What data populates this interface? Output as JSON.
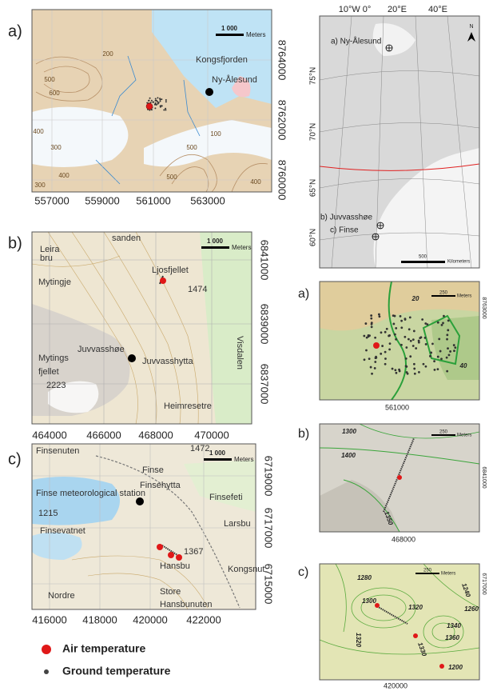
{
  "panels": [
    {
      "label": "a)",
      "scale": "1 000",
      "scale_unit": "Meters",
      "x_ticks": [
        557000,
        559000,
        561000,
        563000
      ],
      "y_ticks": [
        8764000,
        8762000,
        8760000
      ],
      "places": [
        "Kongsfjorden",
        "Ny-Ålesund"
      ],
      "contours": [
        500,
        600,
        200,
        400,
        300,
        100,
        500,
        500,
        400,
        400,
        300
      ]
    },
    {
      "label": "b)",
      "scale": "1 000",
      "scale_unit": "Meters",
      "x_ticks": [
        464000,
        466000,
        468000,
        470000
      ],
      "y_ticks": [
        6841000,
        6839000,
        6837000
      ],
      "places": [
        "sanden",
        "Leira",
        "bru",
        "Mytingje",
        "Ljosfjellet",
        "1474",
        "Mytings",
        "fjellet",
        "2223",
        "Juvvasshøe",
        "Juvvasshytta",
        "Heimresetre",
        "Visdalen"
      ],
      "contours": []
    },
    {
      "label": "c)",
      "scale": "1 000",
      "scale_unit": "Meters",
      "x_ticks": [
        416000,
        418000,
        420000,
        422000
      ],
      "y_ticks": [
        6719000,
        6717000,
        6715000
      ],
      "places": [
        "Finsenuten",
        "Finse",
        "Finsehytta",
        "1472",
        "Finsefeti",
        "Finse meteorological station",
        "1215",
        "Finsevatnet",
        "Larsbu",
        "1367",
        "Hansbu",
        "Kongsnut",
        "Nordre",
        "Store",
        "Hansbunuten"
      ],
      "contours": []
    }
  ],
  "overview": {
    "longitudes": [
      "10°W 0°",
      "20°E",
      "40°E"
    ],
    "latitudes": [
      "75°N",
      "70°N",
      "65°N",
      "60°N"
    ],
    "sites": [
      "a) Ny-Ålesund",
      "b) Juvvasshøe",
      "c) Finse"
    ],
    "scale": "500",
    "scale_unit": "Kilometers",
    "north": "N"
  },
  "details": [
    {
      "label": "a)",
      "scale": "250",
      "scale_unit": "Meters",
      "x_tick": 561000,
      "y_tick": 8763000,
      "contours": [
        20,
        40
      ]
    },
    {
      "label": "b)",
      "scale": "250",
      "scale_unit": "Meters",
      "x_tick": 468000,
      "y_tick": 6841000,
      "contours": [
        1300,
        1400,
        1350
      ]
    },
    {
      "label": "c)",
      "scale": "250",
      "scale_unit": "Meters",
      "x_tick": 420000,
      "y_tick": 6717000,
      "contours": [
        1280,
        1240,
        1260,
        1300,
        1320,
        1340,
        1360,
        1330,
        1200,
        1320
      ]
    }
  ],
  "legend": [
    "Air temperature",
    "Ground temperature"
  ]
}
